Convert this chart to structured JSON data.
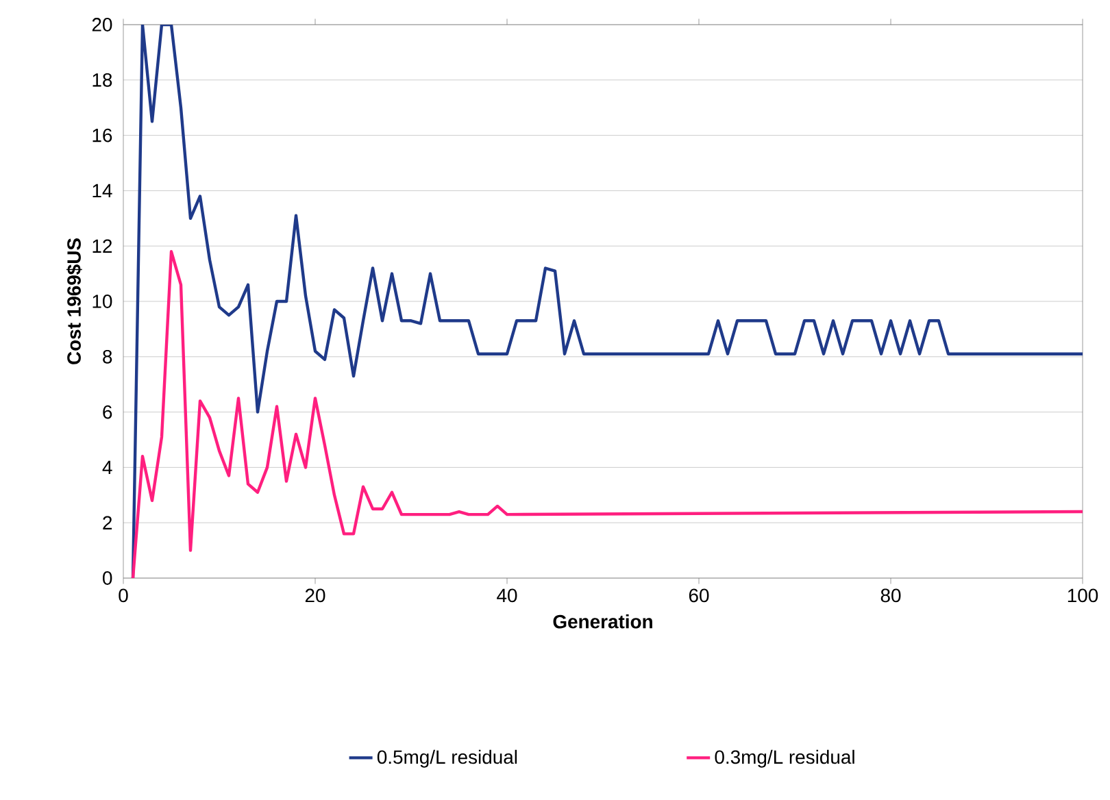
{
  "chart_data": {
    "type": "line",
    "xlabel": "Generation",
    "ylabel": "Cost 1969$US",
    "xlim": [
      0,
      100
    ],
    "xticks": [
      0,
      20,
      40,
      60,
      80,
      100
    ],
    "ylim": [
      0,
      20
    ],
    "yticks": [
      0,
      2,
      4,
      6,
      8,
      10,
      12,
      14,
      16,
      18,
      20
    ],
    "grid": "y",
    "legend": "bottom",
    "marker": "none",
    "line_style": "solid",
    "series": [
      {
        "name": "0.5mg/L residual",
        "color": "#1f3a8a",
        "x": [
          1,
          2,
          3,
          4,
          5,
          6,
          7,
          8,
          9,
          10,
          11,
          12,
          13,
          14,
          15,
          16,
          17,
          18,
          19,
          20,
          21,
          22,
          23,
          24,
          25,
          26,
          27,
          28,
          29,
          30,
          31,
          32,
          33,
          34,
          35,
          36,
          37,
          38,
          39,
          40,
          41,
          42,
          43,
          44,
          45,
          46,
          47,
          48,
          61,
          62,
          63,
          64,
          67,
          68,
          70,
          71,
          72,
          73,
          74,
          75,
          76,
          78,
          79,
          80,
          81,
          82,
          83,
          84,
          85,
          86,
          100
        ],
        "values": [
          0,
          20,
          16.5,
          20,
          20,
          17,
          13,
          13.8,
          11.5,
          9.8,
          9.5,
          9.8,
          10.6,
          6,
          8.2,
          10,
          10,
          13.1,
          10.2,
          8.2,
          7.9,
          9.7,
          9.4,
          7.3,
          9.3,
          11.2,
          9.3,
          11,
          9.3,
          9.3,
          9.2,
          11,
          9.3,
          9.3,
          9.3,
          9.3,
          8.1,
          8.1,
          8.1,
          8.1,
          9.3,
          9.3,
          9.3,
          11.2,
          11.1,
          8.1,
          9.3,
          8.1,
          8.1,
          9.3,
          8.1,
          9.3,
          9.3,
          8.1,
          8.1,
          9.3,
          9.3,
          8.1,
          9.3,
          8.1,
          9.3,
          9.3,
          8.1,
          9.3,
          8.1,
          9.3,
          8.1,
          9.3,
          9.3,
          8.1,
          8.1
        ]
      },
      {
        "name": "0.3mg/L residual",
        "color": "#ff1f7f",
        "x": [
          1,
          2,
          3,
          4,
          5,
          6,
          7,
          8,
          9,
          10,
          11,
          12,
          13,
          14,
          15,
          16,
          17,
          18,
          19,
          20,
          21,
          22,
          23,
          24,
          25,
          26,
          27,
          28,
          29,
          30,
          31,
          32,
          33,
          34,
          35,
          36,
          37,
          38,
          39,
          40,
          100
        ],
        "values": [
          0,
          4.4,
          2.8,
          5.1,
          11.8,
          10.6,
          1,
          6.4,
          5.8,
          4.6,
          3.7,
          6.5,
          3.4,
          3.1,
          4,
          6.2,
          3.5,
          5.2,
          4,
          6.5,
          4.8,
          3,
          1.6,
          1.6,
          3.3,
          2.5,
          2.5,
          3.1,
          2.3,
          2.3,
          2.3,
          2.3,
          2.3,
          2.3,
          2.4,
          2.3,
          2.3,
          2.3,
          2.6,
          2.3,
          2.4
        ]
      }
    ]
  }
}
